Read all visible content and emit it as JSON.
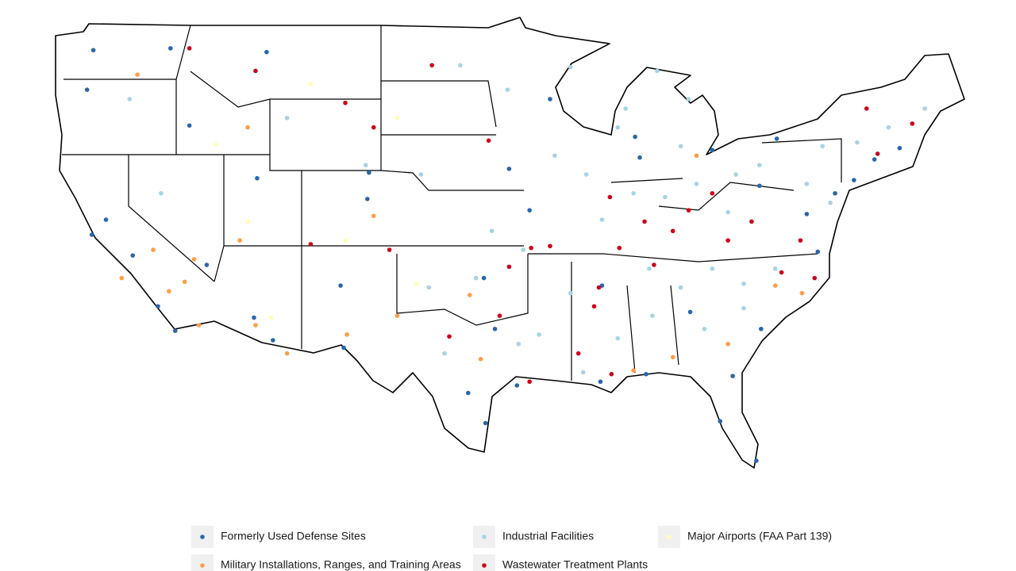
{
  "map": {
    "series": [
      {
        "name": "Formerly Used Defense Sites",
        "color": "#2b65ac",
        "points": [
          [
            -122.3,
            47.6
          ],
          [
            -122.7,
            45.5
          ],
          [
            -122.4,
            37.8
          ],
          [
            -118.2,
            34.0
          ],
          [
            -117.1,
            32.7
          ],
          [
            -112.1,
            33.4
          ],
          [
            -110.9,
            32.2
          ],
          [
            -106.6,
            35.1
          ],
          [
            -104.9,
            39.7
          ],
          [
            -111.9,
            40.8
          ],
          [
            -115.1,
            36.2
          ],
          [
            -106.4,
            31.8
          ],
          [
            -98.5,
            29.4
          ],
          [
            -95.4,
            29.8
          ],
          [
            -96.8,
            32.8
          ],
          [
            -97.5,
            35.5
          ],
          [
            -94.6,
            39.1
          ],
          [
            -95.9,
            41.3
          ],
          [
            -87.6,
            41.9
          ],
          [
            -83.0,
            42.3
          ],
          [
            -74.0,
            40.7
          ],
          [
            -71.1,
            42.4
          ],
          [
            -75.2,
            40.0
          ],
          [
            -77.0,
            38.9
          ],
          [
            -76.3,
            36.9
          ],
          [
            -79.9,
            32.8
          ],
          [
            -80.2,
            25.8
          ],
          [
            -82.5,
            27.9
          ],
          [
            -81.7,
            30.3
          ],
          [
            -87.2,
            30.4
          ],
          [
            -90.1,
            30.0
          ],
          [
            -90.0,
            35.1
          ],
          [
            -84.4,
            33.7
          ],
          [
            -80.0,
            40.4
          ],
          [
            -87.9,
            43.0
          ],
          [
            -93.3,
            45.0
          ],
          [
            -117.4,
            47.7
          ],
          [
            -116.2,
            43.6
          ],
          [
            -111.3,
            47.5
          ],
          [
            -104.8,
            41.1
          ],
          [
            -119.8,
            36.7
          ],
          [
            -121.5,
            38.6
          ],
          [
            -97.4,
            27.8
          ],
          [
            -72.7,
            41.8
          ],
          [
            -78.9,
            42.9
          ]
        ]
      },
      {
        "name": "Industrial Facilities",
        "color": "#a6d3e6",
        "points": [
          [
            -88,
            40
          ],
          [
            -86,
            39.8
          ],
          [
            -84,
            40.5
          ],
          [
            -82,
            39
          ],
          [
            -85,
            42.5
          ],
          [
            -89,
            43.5
          ],
          [
            -91,
            41
          ],
          [
            -93,
            42
          ],
          [
            -90,
            38.6
          ],
          [
            -87,
            36
          ],
          [
            -85,
            35
          ],
          [
            -83,
            36
          ],
          [
            -81,
            35.2
          ],
          [
            -79,
            36
          ],
          [
            -77,
            40.5
          ],
          [
            -76,
            42.5
          ],
          [
            -73.8,
            42.7
          ],
          [
            -80,
            41.5
          ],
          [
            -81.5,
            41
          ],
          [
            -95,
            37
          ],
          [
            -97,
            38
          ],
          [
            -94,
            32.5
          ],
          [
            -92,
            34.7
          ],
          [
            -89,
            32.3
          ],
          [
            -86.8,
            33.5
          ],
          [
            -83.5,
            32.8
          ],
          [
            -81,
            33.9
          ],
          [
            -91.2,
            30.5
          ],
          [
            -95.3,
            32
          ],
          [
            -98,
            35.5
          ],
          [
            -101,
            35
          ],
          [
            -100,
            31.5
          ],
          [
            -110,
            44
          ],
          [
            -120,
            45
          ],
          [
            -118,
            40
          ],
          [
            -105,
            41.5
          ],
          [
            -96,
            45.5
          ],
          [
            -99,
            46.8
          ],
          [
            -101.5,
            41
          ],
          [
            -84.5,
            45
          ],
          [
            -86.5,
            46.5
          ],
          [
            -92,
            46.7
          ],
          [
            -88.5,
            44.5
          ],
          [
            -75.5,
            39.5
          ],
          [
            -71.8,
            43.5
          ],
          [
            -69.5,
            44.5
          ]
        ]
      },
      {
        "name": "Major Airports (FAA Part 139)",
        "color": "#ffffb2",
        "points": [
          [
            -111,
            33.4
          ],
          [
            -101.8,
            35.2
          ],
          [
            -106.3,
            37.5
          ],
          [
            -114.5,
            42.6
          ],
          [
            -108.5,
            45.8
          ],
          [
            -103,
            44
          ],
          [
            -112.5,
            38.5
          ]
        ]
      },
      {
        "name": "Military Installations, Ranges, and Training Areas",
        "color": "#fd9e47",
        "points": [
          [
            -117.5,
            34.8
          ],
          [
            -115.6,
            33
          ],
          [
            -120.5,
            35.5
          ],
          [
            -116.5,
            35.3
          ],
          [
            -112,
            33
          ],
          [
            -110,
            31.5
          ],
          [
            -106.2,
            32.5
          ],
          [
            -104.5,
            38.8
          ],
          [
            -113,
            37.5
          ],
          [
            -118.5,
            37
          ],
          [
            -115.9,
            36.5
          ],
          [
            -97.7,
            31.2
          ],
          [
            -98.4,
            34.6
          ],
          [
            -88,
            30.6
          ],
          [
            -85.5,
            31.3
          ],
          [
            -79,
            35.1
          ],
          [
            -77.3,
            34.7
          ],
          [
            -82,
            32
          ],
          [
            -119.5,
            46.3
          ],
          [
            -112.5,
            43.5
          ],
          [
            -84,
            42
          ],
          [
            -103,
            33.5
          ]
        ]
      },
      {
        "name": "Wastewater Treatment Plants",
        "color": "#cc0018",
        "points": [
          [
            -85.5,
            38
          ],
          [
            -87.3,
            38.5
          ],
          [
            -88.9,
            37.1
          ],
          [
            -86.7,
            36.2
          ],
          [
            -84.5,
            39.1
          ],
          [
            -83,
            40
          ],
          [
            -80.5,
            38.5
          ],
          [
            -82,
            37.5
          ],
          [
            -77.4,
            37.5
          ],
          [
            -76.5,
            35.5
          ],
          [
            -78.6,
            35.8
          ],
          [
            -90.2,
            35
          ],
          [
            -91.5,
            31.5
          ],
          [
            -90.5,
            34
          ],
          [
            -89.5,
            39.8
          ],
          [
            -94.5,
            37.1
          ],
          [
            -93.3,
            37.2
          ],
          [
            -95.9,
            36.1
          ],
          [
            -96.5,
            33.5
          ],
          [
            -97.2,
            42.8
          ],
          [
            -100.8,
            46.8
          ],
          [
            -104.5,
            43.5
          ],
          [
            -106.3,
            44.8
          ],
          [
            -112,
            46.5
          ],
          [
            -116.2,
            47.7
          ],
          [
            -103.5,
            37
          ],
          [
            -108.5,
            37.3
          ],
          [
            -70.3,
            43.7
          ],
          [
            -72.5,
            42.1
          ],
          [
            -73.2,
            44.5
          ],
          [
            -94.6,
            30
          ],
          [
            -89.4,
            30.4
          ],
          [
            -99.7,
            32.4
          ]
        ]
      }
    ]
  }
}
